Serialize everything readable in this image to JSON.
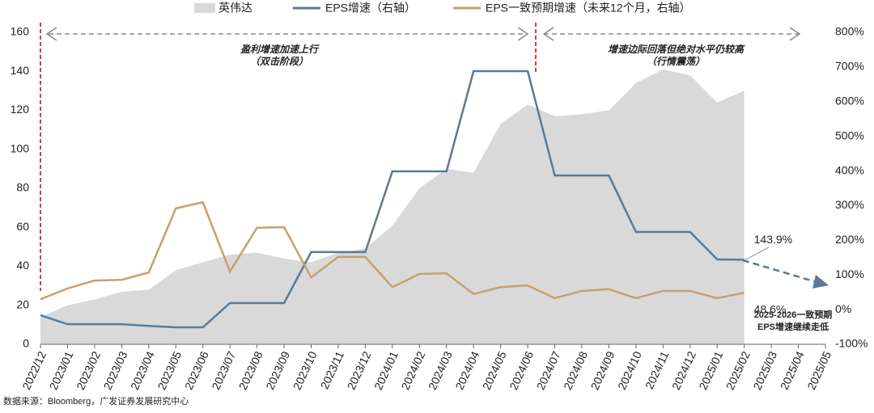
{
  "chart_data": {
    "type": "combo",
    "categories": [
      "2022/12",
      "2023/01",
      "2023/02",
      "2023/03",
      "2023/04",
      "2023/05",
      "2023/06",
      "2023/07",
      "2023/08",
      "2023/09",
      "2023/10",
      "2023/11",
      "2023/12",
      "2024/01",
      "2024/02",
      "2024/03",
      "2024/04",
      "2024/05",
      "2024/06",
      "2024/07",
      "2024/08",
      "2024/09",
      "2024/10",
      "2024/11",
      "2024/12",
      "2025/01",
      "2025/02",
      "2025/03",
      "2025/04",
      "2025/05"
    ],
    "series": [
      {
        "name": "英伟达",
        "type": "area",
        "color": "#d9d9d9",
        "values": [
          14,
          20,
          23,
          27,
          28,
          38,
          42,
          46,
          47,
          44,
          42,
          47,
          49,
          61,
          80,
          90,
          88,
          113,
          123,
          117,
          118,
          120,
          134,
          141,
          138,
          124,
          130,
          null,
          null,
          null
        ]
      },
      {
        "name": "EPS增速（右轴）",
        "type": "line",
        "axis": "y2",
        "color": "#5b7a95",
        "values": [
          -16,
          -42,
          -42,
          -42,
          -47,
          -51,
          -51,
          19,
          19,
          19,
          166,
          166,
          166,
          399,
          399,
          399,
          688,
          688,
          688,
          387,
          387,
          387,
          224,
          224,
          224,
          145,
          143.9,
          null,
          null,
          null
        ],
        "value_labels": [
          null,
          null,
          null,
          null,
          null,
          null,
          null,
          null,
          null,
          null,
          null,
          null,
          null,
          null,
          null,
          null,
          null,
          null,
          null,
          null,
          null,
          null,
          null,
          null,
          null,
          null,
          "143.9%",
          null,
          null,
          null
        ]
      },
      {
        "name": "EPS一致预期增速（未来12个月，右轴）",
        "type": "line",
        "axis": "y2",
        "color": "#c8a06a",
        "values": [
          30,
          61,
          84,
          86,
          107,
          292,
          310,
          110,
          236,
          238,
          93,
          152,
          152,
          65,
          103,
          105,
          45,
          65,
          70,
          33,
          54,
          59,
          33,
          54,
          54,
          33,
          48.6,
          null,
          null,
          null
        ],
        "value_labels": [
          null,
          null,
          null,
          null,
          null,
          null,
          null,
          null,
          null,
          null,
          null,
          null,
          null,
          null,
          null,
          null,
          null,
          null,
          null,
          null,
          null,
          null,
          null,
          null,
          null,
          null,
          "48.6%",
          null,
          null,
          null
        ]
      }
    ],
    "ylim": [
      0,
      160
    ],
    "yticks": [
      0,
      20,
      40,
      60,
      80,
      100,
      120,
      140,
      160
    ],
    "y2lim": [
      -100,
      800
    ],
    "y2ticks": [
      {
        "value": -100,
        "label": "-100%"
      },
      {
        "value": 0,
        "label": "0%"
      },
      {
        "value": 100,
        "label": "100%"
      },
      {
        "value": 200,
        "label": "200%"
      },
      {
        "value": 300,
        "label": "300%"
      },
      {
        "value": 400,
        "label": "400%"
      },
      {
        "value": 500,
        "label": "500%"
      },
      {
        "value": 600,
        "label": "600%"
      },
      {
        "value": 700,
        "label": "700%"
      },
      {
        "value": 800,
        "label": "800%"
      }
    ],
    "annotations": [
      {
        "lines": [
          "盈利增速加速上行",
          "（双击阶段）"
        ],
        "color": "#c00000"
      },
      {
        "lines": [
          "增速边际回落但绝对水平仍较高",
          "（行情震荡）"
        ],
        "color": "#1f5fa8"
      },
      {
        "lines": [
          "2025-2026一致预期",
          "EPS增速继续走低"
        ],
        "color": "#000000"
      }
    ],
    "source": "数据来源：Bloomberg，广发证券发展研究中心"
  }
}
